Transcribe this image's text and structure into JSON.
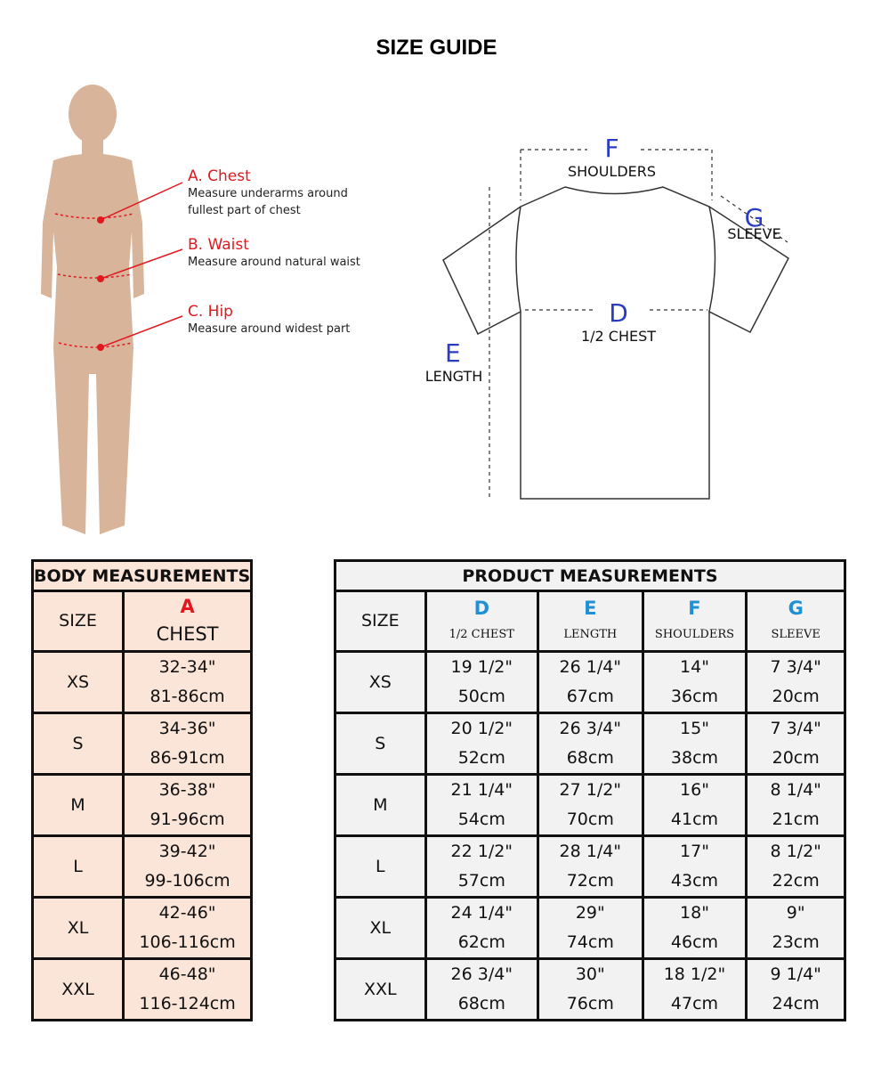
{
  "title": "SIZE GUIDE",
  "body_notes": [
    {
      "heading": "A. Chest",
      "text": "Measure underarms around fullest part of chest"
    },
    {
      "heading": "B. Waist",
      "text": "Measure around natural waist"
    },
    {
      "heading": "C. Hip",
      "text": "Measure around widest part"
    }
  ],
  "shirt_labels": {
    "F": {
      "letter": "F",
      "name": "SHOULDERS"
    },
    "G": {
      "letter": "G",
      "name": "SLEEVE"
    },
    "D": {
      "letter": "D",
      "name": "1/2 CHEST"
    },
    "E": {
      "letter": "E",
      "name": "LENGTH"
    }
  },
  "colors": {
    "accent_red": "#e0191f",
    "accent_blue": "#1f8fd6",
    "body_fill": "#fbe4d8",
    "product_fill": "#f2f2f2"
  },
  "body_table": {
    "caption": "BODY MEASUREMENTS",
    "size_header": "SIZE",
    "chest_letter": "A",
    "chest_header": "CHEST",
    "rows": [
      {
        "size": "XS",
        "in": "32-34\"",
        "cm": "81-86cm"
      },
      {
        "size": "S",
        "in": "34-36\"",
        "cm": "86-91cm"
      },
      {
        "size": "M",
        "in": "36-38\"",
        "cm": "91-96cm"
      },
      {
        "size": "L",
        "in": "39-42\"",
        "cm": "99-106cm"
      },
      {
        "size": "XL",
        "in": "42-46\"",
        "cm": "106-116cm"
      },
      {
        "size": "XXL",
        "in": "46-48\"",
        "cm": "116-124cm"
      }
    ]
  },
  "product_table": {
    "caption": "PRODUCT MEASUREMENTS",
    "size_header": "SIZE",
    "columns": [
      {
        "letter": "D",
        "name": "1/2 CHEST"
      },
      {
        "letter": "E",
        "name": "LENGTH"
      },
      {
        "letter": "F",
        "name": "SHOULDERS"
      },
      {
        "letter": "G",
        "name": "SLEEVE"
      }
    ],
    "rows": [
      {
        "size": "XS",
        "cells": [
          [
            "19 1/2\"",
            "50cm"
          ],
          [
            "26 1/4\"",
            "67cm"
          ],
          [
            "14\"",
            "36cm"
          ],
          [
            "7 3/4\"",
            "20cm"
          ]
        ]
      },
      {
        "size": "S",
        "cells": [
          [
            "20 1/2\"",
            "52cm"
          ],
          [
            "26 3/4\"",
            "68cm"
          ],
          [
            "15\"",
            "38cm"
          ],
          [
            "7 3/4\"",
            "20cm"
          ]
        ]
      },
      {
        "size": "M",
        "cells": [
          [
            "21 1/4\"",
            "54cm"
          ],
          [
            "27 1/2\"",
            "70cm"
          ],
          [
            "16\"",
            "41cm"
          ],
          [
            "8 1/4\"",
            "21cm"
          ]
        ]
      },
      {
        "size": "L",
        "cells": [
          [
            "22 1/2\"",
            "57cm"
          ],
          [
            "28 1/4\"",
            "72cm"
          ],
          [
            "17\"",
            "43cm"
          ],
          [
            "8 1/2\"",
            "22cm"
          ]
        ]
      },
      {
        "size": "XL",
        "cells": [
          [
            "24 1/4\"",
            "62cm"
          ],
          [
            "29\"",
            "74cm"
          ],
          [
            "18\"",
            "46cm"
          ],
          [
            "9\"",
            "23cm"
          ]
        ]
      },
      {
        "size": "XXL",
        "cells": [
          [
            "26 3/4\"",
            "68cm"
          ],
          [
            "30\"",
            "76cm"
          ],
          [
            "18 1/2\"",
            "47cm"
          ],
          [
            "9 1/4\"",
            "24cm"
          ]
        ]
      }
    ]
  }
}
